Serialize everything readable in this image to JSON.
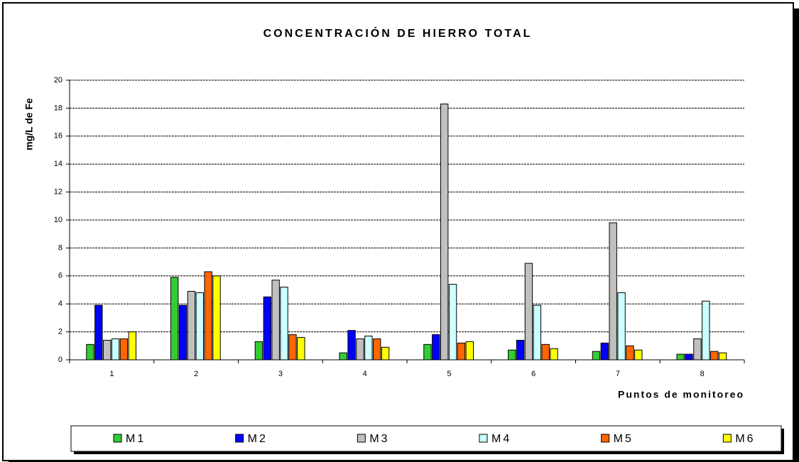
{
  "chart_data": {
    "type": "bar",
    "title": "CONCENTRACIÓN DE HIERRO TOTAL",
    "y_label": "mg/L de Fe",
    "x_label": "Puntos de monitoreo",
    "categories": [
      "1",
      "2",
      "3",
      "4",
      "5",
      "6",
      "7",
      "8"
    ],
    "series": [
      {
        "name": "M1",
        "color": "#33cc33",
        "values": [
          1.1,
          5.9,
          1.3,
          0.5,
          1.1,
          0.7,
          0.6,
          0.4
        ]
      },
      {
        "name": "M2",
        "color": "#0000ff",
        "values": [
          3.9,
          3.9,
          4.5,
          2.1,
          1.8,
          1.4,
          1.2,
          0.4
        ]
      },
      {
        "name": "M3",
        "color": "#c0c0c0",
        "values": [
          1.4,
          4.9,
          5.7,
          1.5,
          18.3,
          6.9,
          9.8,
          1.5
        ]
      },
      {
        "name": "M4",
        "color": "#ccffff",
        "values": [
          1.5,
          4.8,
          5.2,
          1.7,
          5.4,
          3.9,
          4.8,
          4.2
        ]
      },
      {
        "name": "M5",
        "color": "#ff6600",
        "values": [
          1.5,
          6.3,
          1.8,
          1.5,
          1.2,
          1.1,
          1.0,
          0.6
        ]
      },
      {
        "name": "M6",
        "color": "#ffff00",
        "values": [
          2.0,
          6.0,
          1.6,
          0.9,
          1.3,
          0.8,
          0.7,
          0.5
        ]
      }
    ],
    "ylim": [
      0,
      20
    ],
    "yticks": [
      0,
      2,
      4,
      6,
      8,
      10,
      12,
      14,
      16,
      18,
      20
    ],
    "grid": true,
    "legend": "bottom"
  }
}
